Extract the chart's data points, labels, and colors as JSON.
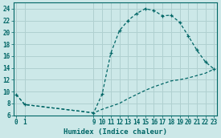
{
  "xlabel": "Humidex (Indice chaleur)",
  "background_color": "#cce8e8",
  "grid_color": "#b0d0d0",
  "line_color": "#006666",
  "x_hours": [
    0,
    1,
    9,
    10,
    11,
    12,
    13,
    14,
    15,
    16,
    17,
    18,
    19,
    20,
    21,
    22,
    23
  ],
  "y_humidex": [
    9.5,
    7.8,
    6.4,
    9.6,
    16.5,
    20.3,
    22.0,
    23.2,
    24.0,
    23.7,
    22.8,
    22.9,
    21.7,
    19.4,
    17.0,
    15.0,
    13.8
  ],
  "x_dew": [
    0,
    1,
    9,
    10,
    11,
    12,
    13,
    14,
    15,
    16,
    17,
    18,
    19,
    20,
    21,
    22,
    23
  ],
  "y_dew": [
    9.5,
    7.8,
    6.4,
    7.0,
    7.5,
    8.0,
    8.8,
    9.5,
    10.2,
    10.8,
    11.3,
    11.8,
    12.0,
    12.3,
    12.7,
    13.1,
    13.8
  ],
  "ylim": [
    6,
    25
  ],
  "yticks": [
    6,
    8,
    10,
    12,
    14,
    16,
    18,
    20,
    22,
    24
  ],
  "xticks": [
    0,
    1,
    9,
    10,
    11,
    12,
    13,
    14,
    15,
    16,
    17,
    18,
    19,
    20,
    21,
    22,
    23
  ],
  "xlim": [
    -0.3,
    23.3
  ],
  "tick_fontsize": 5.5,
  "xlabel_fontsize": 6.5
}
